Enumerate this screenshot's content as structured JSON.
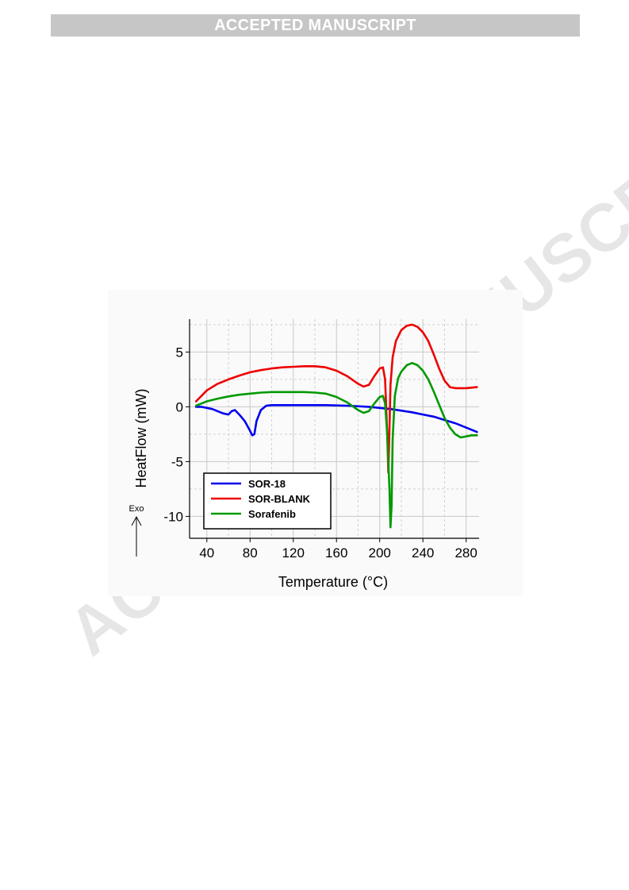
{
  "header": {
    "banner": "ACCEPTED MANUSCRIPT"
  },
  "watermark": {
    "text": "ACCEPTED MANUSCRIPT",
    "color": "#e6e6e6"
  },
  "chart_data": {
    "type": "line",
    "title": "",
    "xlabel": "Temperature (°C)",
    "ylabel": "HeatFlow (mW)",
    "xlim": [
      24,
      292
    ],
    "ylim": [
      -12,
      8
    ],
    "xticks": [
      40,
      80,
      120,
      160,
      200,
      240,
      280
    ],
    "yticks": [
      5,
      0,
      -5,
      -10
    ],
    "grid": true,
    "legend_position": "bottom-left",
    "annotation": {
      "text": "Exo"
    },
    "series": [
      {
        "name": "SOR-18",
        "color": "#0000ee",
        "x": [
          30,
          35,
          40,
          45,
          50,
          55,
          60,
          63,
          66,
          70,
          75,
          80,
          82,
          84,
          86,
          90,
          95,
          100,
          110,
          130,
          150,
          170,
          190,
          200,
          210,
          220,
          230,
          240,
          250,
          260,
          270,
          280,
          290
        ],
        "y": [
          0.0,
          0.0,
          -0.1,
          -0.2,
          -0.4,
          -0.6,
          -0.7,
          -0.4,
          -0.3,
          -0.7,
          -1.3,
          -2.2,
          -2.6,
          -2.5,
          -1.3,
          -0.3,
          0.1,
          0.15,
          0.15,
          0.15,
          0.15,
          0.1,
          0.0,
          -0.1,
          -0.2,
          -0.35,
          -0.5,
          -0.7,
          -0.9,
          -1.2,
          -1.5,
          -1.9,
          -2.3
        ]
      },
      {
        "name": "SOR-BLANK",
        "color": "#ee0000",
        "x": [
          30,
          40,
          50,
          60,
          70,
          80,
          90,
          100,
          110,
          120,
          130,
          140,
          150,
          160,
          170,
          180,
          185,
          190,
          195,
          200,
          203,
          205,
          207,
          208,
          209,
          210,
          212,
          215,
          220,
          225,
          230,
          235,
          240,
          245,
          250,
          255,
          260,
          265,
          270,
          280,
          290
        ],
        "y": [
          0.5,
          1.5,
          2.1,
          2.5,
          2.85,
          3.15,
          3.35,
          3.5,
          3.6,
          3.65,
          3.7,
          3.7,
          3.6,
          3.3,
          2.8,
          2.1,
          1.85,
          2.0,
          2.8,
          3.5,
          3.6,
          2.5,
          -2.5,
          -6.0,
          -2.0,
          2.0,
          4.5,
          6.0,
          7.0,
          7.4,
          7.5,
          7.3,
          6.8,
          6.0,
          4.8,
          3.5,
          2.4,
          1.8,
          1.7,
          1.7,
          1.8
        ]
      },
      {
        "name": "Sorafenib",
        "color": "#009900",
        "x": [
          30,
          40,
          50,
          60,
          70,
          80,
          90,
          100,
          110,
          120,
          130,
          140,
          150,
          160,
          170,
          180,
          185,
          190,
          195,
          200,
          203,
          205,
          207,
          209,
          210,
          211,
          212,
          214,
          217,
          220,
          225,
          230,
          235,
          240,
          245,
          250,
          255,
          260,
          265,
          270,
          275,
          280,
          285,
          290
        ],
        "y": [
          0.1,
          0.5,
          0.75,
          0.95,
          1.1,
          1.2,
          1.3,
          1.35,
          1.35,
          1.35,
          1.35,
          1.3,
          1.2,
          0.9,
          0.4,
          -0.3,
          -0.55,
          -0.4,
          0.3,
          0.9,
          1.0,
          0.3,
          -2.5,
          -7.5,
          -11.0,
          -9.0,
          -3.0,
          1.0,
          2.6,
          3.2,
          3.8,
          4.0,
          3.8,
          3.3,
          2.5,
          1.4,
          0.2,
          -1.0,
          -1.9,
          -2.5,
          -2.8,
          -2.7,
          -2.6,
          -2.6
        ]
      }
    ]
  }
}
